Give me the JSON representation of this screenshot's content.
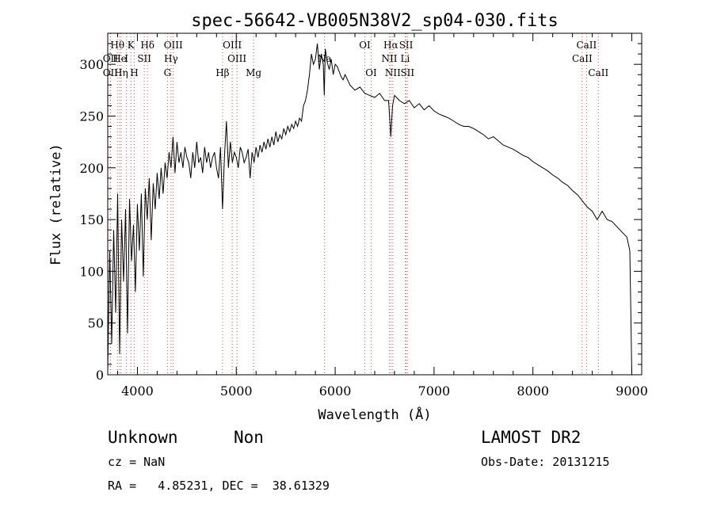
{
  "chart_data": {
    "type": "line",
    "title": "spec-56642-VB005N38V2_sp04-030.fits",
    "xlabel": "Wavelength (Å)",
    "ylabel": "Flux (relative)",
    "xlim": [
      3700,
      9100
    ],
    "ylim": [
      0,
      330
    ],
    "x_ticks": [
      4000,
      5000,
      6000,
      7000,
      8000,
      9000
    ],
    "y_ticks": [
      0,
      50,
      100,
      150,
      200,
      250,
      300
    ],
    "grid": false,
    "series": [
      {
        "x": [
          3700,
          3720,
          3740,
          3760,
          3780,
          3800,
          3820,
          3840,
          3860,
          3880,
          3900,
          3920,
          3940,
          3960,
          3980,
          4000,
          4020,
          4040,
          4060,
          4080,
          4100,
          4120,
          4140,
          4160,
          4180,
          4200,
          4220,
          4240,
          4260,
          4280,
          4300,
          4320,
          4340,
          4360,
          4380,
          4400,
          4420,
          4440,
          4460,
          4480,
          4500,
          4520,
          4540,
          4560,
          4580,
          4600,
          4620,
          4640,
          4660,
          4680,
          4700,
          4720,
          4740,
          4760,
          4780,
          4800,
          4820,
          4840,
          4861,
          4880,
          4900,
          4920,
          4940,
          4960,
          4980,
          5000,
          5020,
          5040,
          5060,
          5080,
          5100,
          5120,
          5140,
          5160,
          5180,
          5200,
          5220,
          5240,
          5260,
          5280,
          5300,
          5320,
          5340,
          5360,
          5380,
          5400,
          5420,
          5440,
          5460,
          5480,
          5500,
          5520,
          5540,
          5560,
          5580,
          5600,
          5620,
          5640,
          5660,
          5680,
          5700,
          5720,
          5740,
          5760,
          5780,
          5800,
          5820,
          5840,
          5860,
          5880,
          5890,
          5900,
          5920,
          5940,
          5960,
          5980,
          6000,
          6020,
          6040,
          6060,
          6080,
          6100,
          6150,
          6200,
          6250,
          6300,
          6350,
          6400,
          6450,
          6500,
          6540,
          6563,
          6580,
          6600,
          6650,
          6700,
          6750,
          6800,
          6850,
          6900,
          6950,
          7000,
          7050,
          7100,
          7150,
          7200,
          7250,
          7300,
          7350,
          7400,
          7450,
          7500,
          7550,
          7600,
          7650,
          7700,
          7750,
          7800,
          7850,
          7900,
          7950,
          8000,
          8050,
          8100,
          8150,
          8200,
          8250,
          8300,
          8350,
          8400,
          8450,
          8500,
          8550,
          8600,
          8650,
          8700,
          8750,
          8800,
          8850,
          8900,
          8950,
          8980,
          8990,
          9000
        ],
        "y": [
          5,
          120,
          30,
          140,
          60,
          175,
          20,
          150,
          90,
          160,
          40,
          170,
          110,
          145,
          80,
          165,
          120,
          175,
          95,
          180,
          150,
          190,
          130,
          185,
          160,
          195,
          170,
          200,
          175,
          205,
          190,
          215,
          200,
          230,
          195,
          225,
          205,
          215,
          200,
          220,
          210,
          205,
          190,
          215,
          200,
          225,
          205,
          210,
          195,
          220,
          205,
          215,
          200,
          210,
          215,
          200,
          190,
          220,
          160,
          210,
          245,
          200,
          225,
          205,
          215,
          210,
          200,
          220,
          215,
          205,
          210,
          218,
          190,
          215,
          205,
          220,
          210,
          222,
          215,
          225,
          218,
          228,
          220,
          230,
          222,
          235,
          225,
          232,
          228,
          238,
          232,
          240,
          235,
          242,
          238,
          245,
          240,
          248,
          245,
          260,
          265,
          275,
          290,
          310,
          300,
          305,
          320,
          295,
          310,
          300,
          270,
          315,
          302,
          295,
          305,
          290,
          300,
          298,
          293,
          288,
          285,
          290,
          280,
          275,
          278,
          272,
          270,
          268,
          272,
          265,
          265,
          230,
          260,
          270,
          265,
          262,
          265,
          258,
          262,
          256,
          260,
          255,
          252,
          250,
          248,
          245,
          242,
          240,
          240,
          238,
          235,
          232,
          228,
          230,
          226,
          222,
          220,
          218,
          215,
          212,
          210,
          206,
          203,
          200,
          197,
          193,
          190,
          186,
          183,
          178,
          174,
          168,
          162,
          158,
          150,
          158,
          150,
          148,
          143,
          138,
          133,
          120,
          60,
          0
        ]
      }
    ],
    "spectral_lines": [
      {
        "label": "Hθ",
        "x": 3798,
        "row": 1
      },
      {
        "label": "K",
        "x": 3934,
        "row": 1
      },
      {
        "label": "Hδ",
        "x": 4102,
        "row": 1
      },
      {
        "label": "OIII",
        "x": 4363,
        "row": 1
      },
      {
        "label": "OIII",
        "x": 4959,
        "row": 1
      },
      {
        "label": "OI",
        "x": 6300,
        "row": 1
      },
      {
        "label": "Hα",
        "x": 6563,
        "row": 1
      },
      {
        "label": "SII",
        "x": 6717,
        "row": 1
      },
      {
        "label": "CaII",
        "x": 8542,
        "row": 1
      },
      {
        "label": "OII",
        "x": 3727,
        "row": 2
      },
      {
        "label": "He",
        "x": 3820,
        "row": 2
      },
      {
        "label": "I",
        "x": 3889,
        "row": 2
      },
      {
        "label": "SII",
        "x": 4070,
        "row": 2
      },
      {
        "label": "Hγ",
        "x": 4340,
        "row": 2
      },
      {
        "label": "OIII",
        "x": 5007,
        "row": 2
      },
      {
        "label": "Na",
        "x": 5893,
        "row": 2
      },
      {
        "label": "NII",
        "x": 6548,
        "row": 2
      },
      {
        "label": "Li",
        "x": 6708,
        "row": 2
      },
      {
        "label": "CaII",
        "x": 8498,
        "row": 2
      },
      {
        "label": "OII",
        "x": 3727,
        "row": 3
      },
      {
        "label": "Hη",
        "x": 3835,
        "row": 3
      },
      {
        "label": "H",
        "x": 3968,
        "row": 3
      },
      {
        "label": "G",
        "x": 4304,
        "row": 3
      },
      {
        "label": "Hβ",
        "x": 4861,
        "row": 3
      },
      {
        "label": "Mg",
        "x": 5175,
        "row": 3
      },
      {
        "label": "OI",
        "x": 6364,
        "row": 3
      },
      {
        "label": "NII",
        "x": 6583,
        "row": 3
      },
      {
        "label": "SII",
        "x": 6731,
        "row": 3
      },
      {
        "label": "CaII",
        "x": 8662,
        "row": 3
      }
    ]
  },
  "info": {
    "class": "Unknown",
    "subclass": "Non",
    "cz": "cz = NaN",
    "coords": "RA =   4.85231, DEC =  38.61329",
    "survey": "LAMOST DR2",
    "obs_date": "Obs-Date: 20131215"
  }
}
